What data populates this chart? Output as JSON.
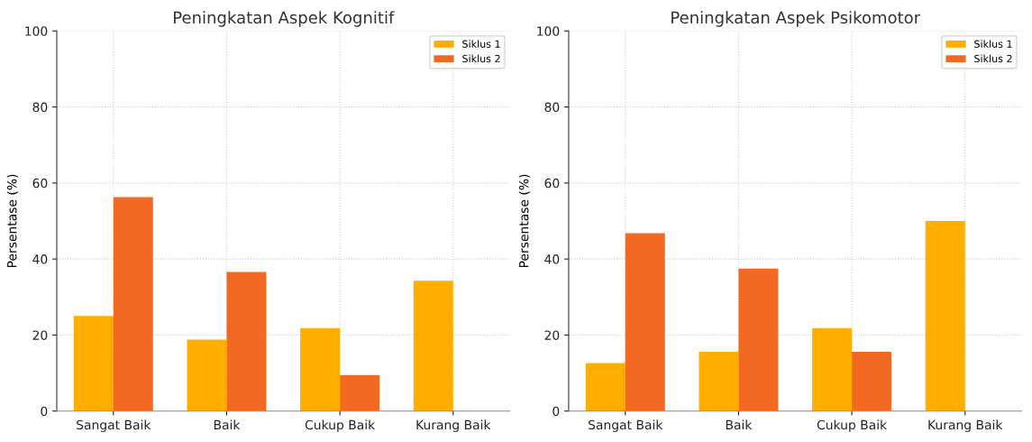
{
  "chart_data": [
    {
      "type": "bar",
      "title": "Peningkatan Aspek Kognitif",
      "ylabel": "Persentase (%)",
      "categories": [
        "Sangat Baik",
        "Baik",
        "Cukup Baik",
        "Kurang Baik"
      ],
      "series": [
        {
          "name": "Siklus 1",
          "color": "#ffae00",
          "values": [
            25.0,
            18.8,
            21.8,
            34.3
          ]
        },
        {
          "name": "Siklus 2",
          "color": "#f26924",
          "values": [
            56.3,
            36.6,
            9.5,
            0
          ]
        }
      ],
      "ylim": [
        0,
        100
      ],
      "yticks": [
        0,
        20,
        40,
        60,
        80,
        100
      ],
      "grid": true,
      "legend": "top right"
    },
    {
      "type": "bar",
      "title": "Peningkatan Aspek Psikomotor",
      "ylabel": "Persentase (%)",
      "categories": [
        "Sangat Baik",
        "Baik",
        "Cukup Baik",
        "Kurang Baik"
      ],
      "series": [
        {
          "name": "Siklus 1",
          "color": "#ffae00",
          "values": [
            12.6,
            15.6,
            21.8,
            50.0
          ]
        },
        {
          "name": "Siklus 2",
          "color": "#f26924",
          "values": [
            46.8,
            37.5,
            15.6,
            0
          ]
        }
      ],
      "ylim": [
        0,
        100
      ],
      "yticks": [
        0,
        20,
        40,
        60,
        80,
        100
      ],
      "grid": true,
      "legend": "top right"
    }
  ]
}
